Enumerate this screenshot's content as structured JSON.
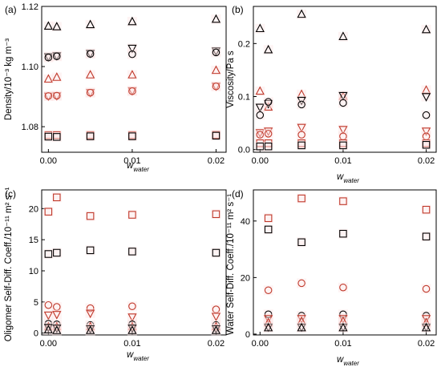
{
  "colors": {
    "black": "#000000",
    "red": "#c0392b",
    "highlight": "#fde4e4"
  },
  "chart_data": [
    {
      "panel": "(a)",
      "type": "scatter",
      "ylabel": "Density/10⁻³ kg m⁻³",
      "xlabel": {
        "main": "w",
        "sub": "water"
      },
      "xlim": [
        -0.0008,
        0.0212
      ],
      "ylim": [
        1.0715,
        1.12
      ],
      "xticks": [
        0.0,
        0.01,
        0.02
      ],
      "xtick_labels": [
        "0.00",
        "0.01",
        "0.02"
      ],
      "yticks": [
        1.08,
        1.1,
        1.12
      ],
      "ytick_labels": [
        "1.08",
        "1.10",
        "1.12"
      ],
      "series": [
        {
          "marker": "triangle-up",
          "color": "black",
          "x": [
            0,
            0.001,
            0.005,
            0.01,
            0.02
          ],
          "y": [
            1.1134,
            1.1132,
            1.1139,
            1.1149,
            1.1157
          ]
        },
        {
          "marker": "triangle-down",
          "color": "black",
          "x": [
            0,
            0.001,
            0.005,
            0.01,
            0.02
          ],
          "y": [
            1.1033,
            1.1036,
            1.1044,
            1.1061,
            1.1052
          ]
        },
        {
          "marker": "circle",
          "color": "black",
          "x": [
            0,
            0.001,
            0.005,
            0.01,
            0.02
          ],
          "y": [
            1.103,
            1.1034,
            1.1042,
            1.1041,
            1.1047
          ]
        },
        {
          "marker": "triangle-up",
          "color": "red",
          "x": [
            0,
            0.001,
            0.005,
            0.01,
            0.02
          ],
          "y": [
            1.0958,
            1.0964,
            1.0972,
            1.0972,
            1.0987
          ]
        },
        {
          "marker": "triangle-down",
          "color": "red",
          "x": [
            0,
            0.001,
            0.005,
            0.01,
            0.02
          ],
          "y": [
            1.0902,
            1.0903,
            1.0914,
            1.092,
            1.0935
          ]
        },
        {
          "marker": "circle",
          "color": "red",
          "x": [
            0,
            0.001,
            0.005,
            0.01,
            0.02
          ],
          "y": [
            1.0902,
            1.0903,
            1.0913,
            1.0918,
            1.0934
          ]
        },
        {
          "marker": "square",
          "color": "red",
          "x": [
            0,
            0.001,
            0.005,
            0.01,
            0.02
          ],
          "y": [
            1.0772,
            1.0772,
            1.0772,
            1.0772,
            1.0773
          ]
        },
        {
          "marker": "square",
          "color": "black",
          "x": [
            0,
            0.001,
            0.005,
            0.01,
            0.02
          ],
          "y": [
            1.0767,
            1.0766,
            1.0768,
            1.0768,
            1.077
          ]
        }
      ]
    },
    {
      "panel": "(b)",
      "type": "scatter",
      "ylabel": "Viscosity/Pa s",
      "xlabel": {
        "main": "w",
        "sub": "water"
      },
      "xlim": [
        -0.0008,
        0.0212
      ],
      "ylim": [
        -0.005,
        0.27
      ],
      "xticks": [
        0.0,
        0.01,
        0.02
      ],
      "xtick_labels": [
        "0.00",
        "0.01",
        "0.02"
      ],
      "yticks": [
        0.0,
        0.1,
        0.2
      ],
      "ytick_labels": [
        "0.0",
        "0.1",
        "0.2"
      ],
      "series": [
        {
          "marker": "triangle-up",
          "color": "black",
          "x": [
            0,
            0.001,
            0.005,
            0.01,
            0.02
          ],
          "y": [
            0.228,
            0.188,
            0.255,
            0.213,
            0.226
          ]
        },
        {
          "marker": "triangle-up",
          "color": "red",
          "x": [
            0,
            0.001,
            0.005,
            0.01,
            0.02
          ],
          "y": [
            0.11,
            0.08,
            0.104,
            0.1,
            0.112
          ]
        },
        {
          "marker": "triangle-down",
          "color": "black",
          "x": [
            0,
            0.001,
            0.005,
            0.01,
            0.02
          ],
          "y": [
            0.08,
            0.087,
            0.093,
            0.102,
            0.1
          ]
        },
        {
          "marker": "circle",
          "color": "black",
          "x": [
            0,
            0.001,
            0.005,
            0.01,
            0.02
          ],
          "y": [
            0.065,
            0.09,
            0.085,
            0.088,
            0.065
          ]
        },
        {
          "marker": "triangle-down",
          "color": "red",
          "x": [
            0,
            0.001,
            0.005,
            0.01,
            0.02
          ],
          "y": [
            0.032,
            0.035,
            0.042,
            0.038,
            0.035
          ]
        },
        {
          "marker": "circle",
          "color": "red",
          "x": [
            0,
            0.001,
            0.005,
            0.01,
            0.02
          ],
          "y": [
            0.028,
            0.03,
            0.028,
            0.025,
            0.025
          ]
        },
        {
          "marker": "square",
          "color": "red",
          "x": [
            0,
            0.001,
            0.005,
            0.01,
            0.02
          ],
          "y": [
            0.012,
            0.012,
            0.012,
            0.012,
            0.012
          ]
        },
        {
          "marker": "square",
          "color": "black",
          "x": [
            0,
            0.001,
            0.005,
            0.01,
            0.02
          ],
          "y": [
            0.006,
            0.006,
            0.008,
            0.008,
            0.009
          ]
        }
      ]
    },
    {
      "panel": "(c)",
      "type": "scatter",
      "ylabel": "Oligomer Self-Diff. Coeff./10⁻¹¹ m² s⁻¹",
      "xlabel": {
        "main": "w",
        "sub": "water"
      },
      "xlim": [
        -0.0008,
        0.0212
      ],
      "ylim": [
        -0.3,
        23
      ],
      "xticks": [
        0.0,
        0.01,
        0.02
      ],
      "xtick_labels": [
        "0.00",
        "0.01",
        "0.02"
      ],
      "yticks": [
        0,
        5,
        10,
        15,
        20
      ],
      "ytick_labels": [
        "0",
        "5",
        "10",
        "15",
        "20"
      ],
      "series": [
        {
          "marker": "square",
          "color": "red",
          "x": [
            0,
            0.001,
            0.005,
            0.01,
            0.02
          ],
          "y": [
            19.5,
            21.8,
            18.8,
            19.0,
            19.1
          ]
        },
        {
          "marker": "square",
          "color": "black",
          "x": [
            0,
            0.001,
            0.005,
            0.01,
            0.02
          ],
          "y": [
            12.7,
            12.9,
            13.3,
            13.1,
            12.9
          ]
        },
        {
          "marker": "circle",
          "color": "red",
          "x": [
            0,
            0.001,
            0.005,
            0.01,
            0.02
          ],
          "y": [
            4.5,
            4.2,
            4.0,
            4.3,
            3.8
          ]
        },
        {
          "marker": "triangle-down",
          "color": "red",
          "x": [
            0,
            0.001,
            0.005,
            0.01,
            0.02
          ],
          "y": [
            2.9,
            3.0,
            3.2,
            2.6,
            2.7
          ]
        },
        {
          "marker": "circle",
          "color": "black",
          "x": [
            0,
            0.001,
            0.005,
            0.01,
            0.02
          ],
          "y": [
            1.5,
            1.4,
            1.3,
            1.4,
            1.3
          ]
        },
        {
          "marker": "triangle-up",
          "color": "red",
          "x": [
            0,
            0.001,
            0.005,
            0.01,
            0.02
          ],
          "y": [
            1.0,
            1.0,
            1.0,
            1.0,
            1.0
          ]
        },
        {
          "marker": "triangle-down",
          "color": "black",
          "x": [
            0,
            0.001,
            0.005,
            0.01,
            0.02
          ],
          "y": [
            0.9,
            0.8,
            0.7,
            0.8,
            0.7
          ]
        },
        {
          "marker": "triangle-up",
          "color": "black",
          "x": [
            0,
            0.001,
            0.005,
            0.01,
            0.02
          ],
          "y": [
            0.5,
            0.4,
            0.4,
            0.4,
            0.4
          ]
        }
      ]
    },
    {
      "panel": "(d)",
      "type": "scatter",
      "ylabel": "Water Self-Diff. Coeff./10⁻¹¹ m² s⁻¹",
      "xlabel": {
        "main": "w",
        "sub": "water"
      },
      "xlim": [
        -0.0008,
        0.0212
      ],
      "ylim": [
        -0.3,
        51
      ],
      "xticks": [
        0.0,
        0.01,
        0.02
      ],
      "xtick_labels": [
        "0.00",
        "0.01",
        "0.02"
      ],
      "yticks": [
        0,
        20,
        40
      ],
      "ytick_labels": [
        "0",
        "20",
        "40"
      ],
      "series": [
        {
          "marker": "square",
          "color": "red",
          "x": [
            0.001,
            0.005,
            0.01,
            0.02
          ],
          "y": [
            41.0,
            48.0,
            47.0,
            44.0
          ]
        },
        {
          "marker": "square",
          "color": "black",
          "x": [
            0.001,
            0.005,
            0.01,
            0.02
          ],
          "y": [
            37.0,
            32.5,
            35.5,
            34.5
          ]
        },
        {
          "marker": "circle",
          "color": "red",
          "x": [
            0.001,
            0.005,
            0.01,
            0.02
          ],
          "y": [
            15.5,
            18.0,
            16.5,
            16.0
          ]
        },
        {
          "marker": "circle",
          "color": "black",
          "x": [
            0.001,
            0.005,
            0.01,
            0.02
          ],
          "y": [
            7.0,
            6.5,
            7.0,
            6.5
          ]
        },
        {
          "marker": "triangle-down",
          "color": "red",
          "x": [
            0.001,
            0.005,
            0.01,
            0.02
          ],
          "y": [
            5.5,
            5.5,
            5.5,
            5.5
          ]
        },
        {
          "marker": "triangle-up",
          "color": "red",
          "x": [
            0.001,
            0.005,
            0.01,
            0.02
          ],
          "y": [
            4.0,
            4.5,
            4.5,
            4.0
          ]
        },
        {
          "marker": "triangle-down",
          "color": "black",
          "x": [
            0.001,
            0.005,
            0.01,
            0.02
          ],
          "y": [
            2.5,
            2.5,
            2.5,
            2.5
          ]
        },
        {
          "marker": "triangle-up",
          "color": "black",
          "x": [
            0.001,
            0.005,
            0.01,
            0.02
          ],
          "y": [
            2.2,
            2.2,
            2.2,
            2.2
          ]
        }
      ]
    }
  ]
}
